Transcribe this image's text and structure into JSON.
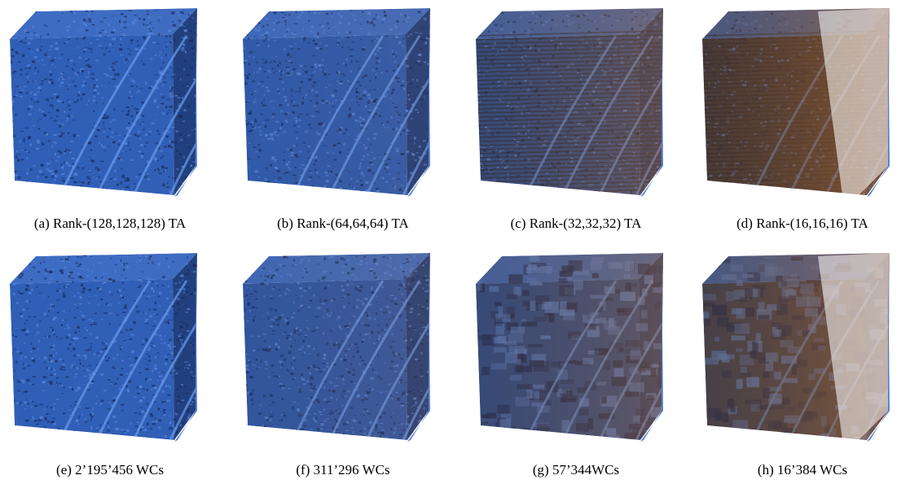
{
  "panels": [
    {
      "label": "(a)",
      "caption": "Rank-(128,128,128) TA",
      "method": "tensor-approximation",
      "reduction_level": 0.0,
      "base_color": "#2f5fb8",
      "brown_overlay": 0.02,
      "noise_scale": "fine"
    },
    {
      "label": "(b)",
      "caption": "Rank-(64,64,64) TA",
      "method": "tensor-approximation",
      "reduction_level": 0.25,
      "base_color": "#2d5cb3",
      "brown_overlay": 0.12,
      "noise_scale": "fine"
    },
    {
      "label": "(c)",
      "caption": "Rank-(32,32,32) TA",
      "method": "tensor-approximation",
      "reduction_level": 0.55,
      "base_color": "#2a4f96",
      "brown_overlay": 0.45,
      "noise_scale": "striped"
    },
    {
      "label": "(d)",
      "caption": "Rank-(16,16,16) TA",
      "method": "tensor-approximation",
      "reduction_level": 0.85,
      "base_color": "#3a3a48",
      "brown_overlay": 0.7,
      "noise_scale": "striped"
    },
    {
      "label": "(e)",
      "caption": "2’195’456 WCs",
      "method": "wavelet",
      "reduction_level": 0.0,
      "base_color": "#2f5fb8",
      "brown_overlay": 0.02,
      "noise_scale": "fine"
    },
    {
      "label": "(f)",
      "caption": "311’296 WCs",
      "method": "wavelet",
      "reduction_level": 0.3,
      "base_color": "#2c58ac",
      "brown_overlay": 0.18,
      "noise_scale": "medium"
    },
    {
      "label": "(g)",
      "caption": "57’344WCs",
      "method": "wavelet",
      "reduction_level": 0.6,
      "base_color": "#2a4f96",
      "brown_overlay": 0.45,
      "noise_scale": "blocky"
    },
    {
      "label": "(h)",
      "caption": "16’384 WCs",
      "method": "wavelet",
      "reduction_level": 0.9,
      "base_color": "#3a4460",
      "brown_overlay": 0.65,
      "noise_scale": "blocky"
    }
  ]
}
